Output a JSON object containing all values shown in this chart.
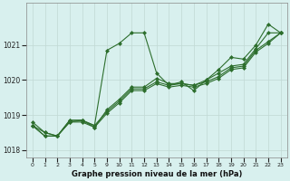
{
  "title": "Graphe pression niveau de la mer (hPa)",
  "bg_color": "#d8f0ee",
  "grid_color": "#c0d8d4",
  "line_color": "#2d6e2d",
  "series": [
    {
      "hours": [
        0,
        1,
        2,
        3,
        4,
        5,
        9,
        10,
        11,
        12,
        13,
        14,
        15,
        16,
        17,
        18,
        19,
        20,
        21,
        22,
        23
      ],
      "y": [
        1018.7,
        1018.5,
        1018.4,
        1018.85,
        1018.85,
        1018.7,
        1020.85,
        1021.05,
        1021.35,
        1021.35,
        1020.2,
        1019.85,
        1019.95,
        1019.7,
        1020.0,
        1020.3,
        1020.65,
        1020.6,
        1021.0,
        1021.6,
        1021.35
      ]
    },
    {
      "hours": [
        0,
        1,
        2,
        3,
        4,
        5,
        9,
        10,
        11,
        12,
        13,
        14,
        15,
        16,
        17,
        18,
        19,
        20,
        21,
        22,
        23
      ],
      "y": [
        1018.7,
        1018.4,
        1018.4,
        1018.8,
        1018.85,
        1018.65,
        1019.15,
        1019.45,
        1019.8,
        1019.8,
        1020.05,
        1019.9,
        1019.9,
        1019.85,
        1020.0,
        1020.2,
        1020.4,
        1020.45,
        1020.9,
        1021.35,
        1021.35
      ]
    },
    {
      "hours": [
        0,
        1,
        2,
        3,
        4,
        5,
        9,
        10,
        11,
        12,
        13,
        14,
        15,
        16,
        17,
        18,
        19,
        20,
        21,
        22,
        23
      ],
      "y": [
        1018.7,
        1018.4,
        1018.4,
        1018.85,
        1018.85,
        1018.7,
        1019.1,
        1019.4,
        1019.75,
        1019.75,
        1019.95,
        1019.85,
        1019.9,
        1019.85,
        1019.95,
        1020.1,
        1020.35,
        1020.4,
        1020.85,
        1021.1,
        1021.35
      ]
    },
    {
      "hours": [
        0,
        1,
        2,
        3,
        4,
        5,
        9,
        10,
        11,
        12,
        13,
        14,
        15,
        16,
        17,
        18,
        19,
        20,
        21,
        22,
        23
      ],
      "y": [
        1018.8,
        1018.5,
        1018.4,
        1018.8,
        1018.8,
        1018.65,
        1019.05,
        1019.35,
        1019.7,
        1019.7,
        1019.9,
        1019.8,
        1019.85,
        1019.8,
        1019.9,
        1020.05,
        1020.3,
        1020.35,
        1020.8,
        1021.05,
        1021.35
      ]
    }
  ],
  "hour_positions": [
    0,
    1,
    2,
    3,
    4,
    5,
    6,
    7,
    8,
    9,
    10,
    11,
    12,
    13,
    14,
    15,
    16,
    17,
    18,
    19,
    20
  ],
  "tick_hours": [
    0,
    1,
    2,
    3,
    4,
    5,
    9,
    10,
    11,
    12,
    13,
    14,
    15,
    16,
    17,
    18,
    19,
    20,
    21,
    22,
    23
  ],
  "tick_labels": [
    "0",
    "1",
    "2",
    "3",
    "4",
    "5",
    "9",
    "10",
    "11",
    "12",
    "13",
    "14",
    "15",
    "16",
    "17",
    "18",
    "19",
    "20",
    "21",
    "22",
    "23"
  ],
  "ylim": [
    1017.8,
    1022.2
  ],
  "yticks": [
    1018,
    1019,
    1020,
    1021
  ],
  "marker": "D",
  "marker_size": 2.0,
  "linewidth": 0.8
}
